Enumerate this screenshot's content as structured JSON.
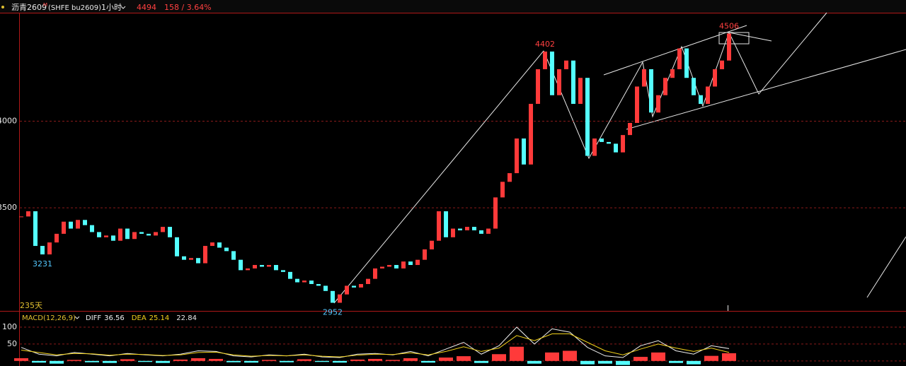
{
  "header": {
    "symbol": "沥青2609",
    "mark": "M",
    "code": "(SHFE bu2609)",
    "period": "1小时",
    "price": "4494",
    "change": "158 / 3.64%",
    "span": "235天"
  },
  "chart_data": [
    {
      "type": "candlestick",
      "up_color": "#ff3a3a",
      "down_color": "#54ffff",
      "values": [
        3450,
        3480,
        3280,
        3231,
        3300,
        3350,
        3420,
        3380,
        3430,
        3400,
        3360,
        3330,
        3340,
        3310,
        3380,
        3320,
        3360,
        3350,
        3340,
        3360,
        3390,
        3330,
        3220,
        3200,
        3210,
        3180,
        3280,
        3300,
        3270,
        3250,
        3200,
        3140,
        3150,
        3170,
        3160,
        3170,
        3140,
        3130,
        3090,
        3070,
        3080,
        3060,
        3050,
        3020,
        2952,
        3000,
        3050,
        3040,
        3060,
        3090,
        3150,
        3160,
        3170,
        3150,
        3190,
        3170,
        3200,
        3260,
        3310,
        3480,
        3330,
        3380,
        3370,
        3390,
        3370,
        3350,
        3380,
        3560,
        3650,
        3700,
        3900,
        3750,
        4100,
        4300,
        4402,
        4150,
        4300,
        4350,
        4100,
        4250,
        3800,
        3900,
        3880,
        3870,
        3820,
        3920,
        3990,
        4200,
        4300,
        4050,
        4150,
        4250,
        4300,
        4420,
        4250,
        4150,
        4100,
        4200,
        4300,
        4350,
        4506
      ],
      "ylim": [
        2905,
        4622
      ],
      "yticks": [
        3500,
        4000
      ],
      "grid": true
    },
    {
      "type": "macd",
      "title": "MACD(12,26,9)",
      "hist": [
        8,
        -5,
        -8,
        3,
        -4,
        -6,
        5,
        -3,
        -6,
        4,
        8,
        6,
        -4,
        -5,
        3,
        -4,
        5,
        -3,
        -5,
        4,
        6,
        3,
        8,
        -5,
        10,
        14,
        -6,
        20,
        42,
        -8,
        25,
        30,
        -10,
        -8,
        -12,
        12,
        25,
        -6,
        -10,
        15,
        22.84
      ],
      "series": [
        {
          "name": "DIFF",
          "color": "#f0f0f0",
          "values": [
            40,
            20,
            15,
            25,
            20,
            15,
            22,
            18,
            15,
            20,
            30,
            28,
            15,
            12,
            18,
            15,
            20,
            12,
            10,
            20,
            22,
            18,
            28,
            15,
            35,
            55,
            20,
            45,
            100,
            50,
            95,
            85,
            40,
            15,
            10,
            45,
            60,
            30,
            20,
            45,
            36.56
          ]
        },
        {
          "name": "DEA",
          "color": "#f2d21b",
          "values": [
            32,
            25,
            18,
            22,
            21,
            17,
            20,
            19,
            16,
            18,
            25,
            26,
            18,
            14,
            16,
            15,
            18,
            14,
            12,
            17,
            20,
            19,
            24,
            18,
            28,
            42,
            28,
            38,
            75,
            60,
            80,
            80,
            55,
            30,
            18,
            35,
            50,
            38,
            28,
            38,
            25.14
          ]
        }
      ],
      "ylim": [
        -15,
        148
      ],
      "yticks": [
        50,
        100
      ],
      "grid": true,
      "up_color": "#ff3a3a",
      "down_color": "#54ffff"
    }
  ]
}
